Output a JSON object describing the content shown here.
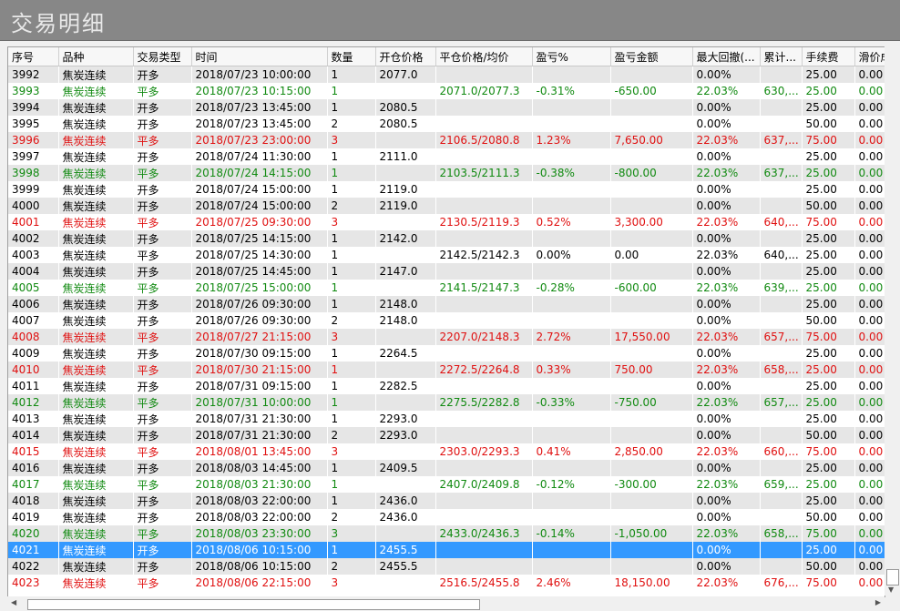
{
  "window": {
    "title": "交易明细"
  },
  "table": {
    "columns": [
      "序号",
      "品种",
      "交易类型",
      "时间",
      "数量",
      "开仓价格",
      "平仓价格/均价",
      "盈亏%",
      "盈亏金额",
      "最大回撤(...",
      "累计...",
      "手续费",
      "滑价成"
    ],
    "rows": [
      {
        "c": "black",
        "cells": [
          "3992",
          "焦炭连续",
          "开多",
          "2018/07/23 10:00:00",
          "1",
          "2077.0",
          "",
          "",
          "",
          "0.00%",
          "",
          "25.00",
          "0.00"
        ]
      },
      {
        "c": "green",
        "cells": [
          "3993",
          "焦炭连续",
          "平多",
          "2018/07/23 10:15:00",
          "1",
          "",
          "2071.0/2077.3",
          "-0.31%",
          "-650.00",
          "22.03%",
          "630,...",
          "25.00",
          "0.00"
        ]
      },
      {
        "c": "black",
        "cells": [
          "3994",
          "焦炭连续",
          "开多",
          "2018/07/23 13:45:00",
          "1",
          "2080.5",
          "",
          "",
          "",
          "0.00%",
          "",
          "25.00",
          "0.00"
        ]
      },
      {
        "c": "black",
        "cells": [
          "3995",
          "焦炭连续",
          "开多",
          "2018/07/23 13:45:00",
          "2",
          "2080.5",
          "",
          "",
          "",
          "0.00%",
          "",
          "50.00",
          "0.00"
        ]
      },
      {
        "c": "red",
        "cells": [
          "3996",
          "焦炭连续",
          "平多",
          "2018/07/23 23:00:00",
          "3",
          "",
          "2106.5/2080.8",
          "1.23%",
          "7,650.00",
          "22.03%",
          "637,...",
          "75.00",
          "0.00"
        ]
      },
      {
        "c": "black",
        "cells": [
          "3997",
          "焦炭连续",
          "开多",
          "2018/07/24 11:30:00",
          "1",
          "2111.0",
          "",
          "",
          "",
          "0.00%",
          "",
          "25.00",
          "0.00"
        ]
      },
      {
        "c": "green",
        "cells": [
          "3998",
          "焦炭连续",
          "平多",
          "2018/07/24 14:15:00",
          "1",
          "",
          "2103.5/2111.3",
          "-0.38%",
          "-800.00",
          "22.03%",
          "637,...",
          "25.00",
          "0.00"
        ]
      },
      {
        "c": "black",
        "cells": [
          "3999",
          "焦炭连续",
          "开多",
          "2018/07/24 15:00:00",
          "1",
          "2119.0",
          "",
          "",
          "",
          "0.00%",
          "",
          "25.00",
          "0.00"
        ]
      },
      {
        "c": "black",
        "cells": [
          "4000",
          "焦炭连续",
          "开多",
          "2018/07/24 15:00:00",
          "2",
          "2119.0",
          "",
          "",
          "",
          "0.00%",
          "",
          "50.00",
          "0.00"
        ]
      },
      {
        "c": "red",
        "cells": [
          "4001",
          "焦炭连续",
          "平多",
          "2018/07/25 09:30:00",
          "3",
          "",
          "2130.5/2119.3",
          "0.52%",
          "3,300.00",
          "22.03%",
          "640,...",
          "75.00",
          "0.00"
        ]
      },
      {
        "c": "black",
        "cells": [
          "4002",
          "焦炭连续",
          "开多",
          "2018/07/25 14:15:00",
          "1",
          "2142.0",
          "",
          "",
          "",
          "0.00%",
          "",
          "25.00",
          "0.00"
        ]
      },
      {
        "c": "black",
        "cells": [
          "4003",
          "焦炭连续",
          "平多",
          "2018/07/25 14:30:00",
          "1",
          "",
          "2142.5/2142.3",
          "0.00%",
          "0.00",
          "22.03%",
          "640,...",
          "25.00",
          "0.00"
        ]
      },
      {
        "c": "black",
        "cells": [
          "4004",
          "焦炭连续",
          "开多",
          "2018/07/25 14:45:00",
          "1",
          "2147.0",
          "",
          "",
          "",
          "0.00%",
          "",
          "25.00",
          "0.00"
        ]
      },
      {
        "c": "green",
        "cells": [
          "4005",
          "焦炭连续",
          "平多",
          "2018/07/25 15:00:00",
          "1",
          "",
          "2141.5/2147.3",
          "-0.28%",
          "-600.00",
          "22.03%",
          "639,...",
          "25.00",
          "0.00"
        ]
      },
      {
        "c": "black",
        "cells": [
          "4006",
          "焦炭连续",
          "开多",
          "2018/07/26 09:30:00",
          "1",
          "2148.0",
          "",
          "",
          "",
          "0.00%",
          "",
          "25.00",
          "0.00"
        ]
      },
      {
        "c": "black",
        "cells": [
          "4007",
          "焦炭连续",
          "开多",
          "2018/07/26 09:30:00",
          "2",
          "2148.0",
          "",
          "",
          "",
          "0.00%",
          "",
          "50.00",
          "0.00"
        ]
      },
      {
        "c": "red",
        "cells": [
          "4008",
          "焦炭连续",
          "平多",
          "2018/07/27 21:15:00",
          "3",
          "",
          "2207.0/2148.3",
          "2.72%",
          "17,550.00",
          "22.03%",
          "657,...",
          "75.00",
          "0.00"
        ]
      },
      {
        "c": "black",
        "cells": [
          "4009",
          "焦炭连续",
          "开多",
          "2018/07/30 09:15:00",
          "1",
          "2264.5",
          "",
          "",
          "",
          "0.00%",
          "",
          "25.00",
          "0.00"
        ]
      },
      {
        "c": "red",
        "cells": [
          "4010",
          "焦炭连续",
          "平多",
          "2018/07/30 21:15:00",
          "1",
          "",
          "2272.5/2264.8",
          "0.33%",
          "750.00",
          "22.03%",
          "658,...",
          "25.00",
          "0.00"
        ]
      },
      {
        "c": "black",
        "cells": [
          "4011",
          "焦炭连续",
          "开多",
          "2018/07/31 09:15:00",
          "1",
          "2282.5",
          "",
          "",
          "",
          "0.00%",
          "",
          "25.00",
          "0.00"
        ]
      },
      {
        "c": "green",
        "cells": [
          "4012",
          "焦炭连续",
          "平多",
          "2018/07/31 10:00:00",
          "1",
          "",
          "2275.5/2282.8",
          "-0.33%",
          "-750.00",
          "22.03%",
          "657,...",
          "25.00",
          "0.00"
        ]
      },
      {
        "c": "black",
        "cells": [
          "4013",
          "焦炭连续",
          "开多",
          "2018/07/31 21:30:00",
          "1",
          "2293.0",
          "",
          "",
          "",
          "0.00%",
          "",
          "25.00",
          "0.00"
        ]
      },
      {
        "c": "black",
        "cells": [
          "4014",
          "焦炭连续",
          "开多",
          "2018/07/31 21:30:00",
          "2",
          "2293.0",
          "",
          "",
          "",
          "0.00%",
          "",
          "50.00",
          "0.00"
        ]
      },
      {
        "c": "red",
        "cells": [
          "4015",
          "焦炭连续",
          "平多",
          "2018/08/01 13:45:00",
          "3",
          "",
          "2303.0/2293.3",
          "0.41%",
          "2,850.00",
          "22.03%",
          "660,...",
          "75.00",
          "0.00"
        ]
      },
      {
        "c": "black",
        "cells": [
          "4016",
          "焦炭连续",
          "开多",
          "2018/08/03 14:45:00",
          "1",
          "2409.5",
          "",
          "",
          "",
          "0.00%",
          "",
          "25.00",
          "0.00"
        ]
      },
      {
        "c": "green",
        "cells": [
          "4017",
          "焦炭连续",
          "平多",
          "2018/08/03 21:30:00",
          "1",
          "",
          "2407.0/2409.8",
          "-0.12%",
          "-300.00",
          "22.03%",
          "659,...",
          "25.00",
          "0.00"
        ]
      },
      {
        "c": "black",
        "cells": [
          "4018",
          "焦炭连续",
          "开多",
          "2018/08/03 22:00:00",
          "1",
          "2436.0",
          "",
          "",
          "",
          "0.00%",
          "",
          "25.00",
          "0.00"
        ]
      },
      {
        "c": "black",
        "cells": [
          "4019",
          "焦炭连续",
          "开多",
          "2018/08/03 22:00:00",
          "2",
          "2436.0",
          "",
          "",
          "",
          "0.00%",
          "",
          "50.00",
          "0.00"
        ]
      },
      {
        "c": "green",
        "cells": [
          "4020",
          "焦炭连续",
          "平多",
          "2018/08/03 23:30:00",
          "3",
          "",
          "2433.0/2436.3",
          "-0.14%",
          "-1,050.00",
          "22.03%",
          "658,...",
          "75.00",
          "0.00"
        ]
      },
      {
        "c": "black",
        "sel": true,
        "cells": [
          "4021",
          "焦炭连续",
          "开多",
          "2018/08/06 10:15:00",
          "1",
          "2455.5",
          "",
          "",
          "",
          "0.00%",
          "",
          "25.00",
          "0.00"
        ]
      },
      {
        "c": "black",
        "cells": [
          "4022",
          "焦炭连续",
          "开多",
          "2018/08/06 10:15:00",
          "2",
          "2455.5",
          "",
          "",
          "",
          "0.00%",
          "",
          "50.00",
          "0.00"
        ]
      },
      {
        "c": "red",
        "cells": [
          "4023",
          "焦炭连续",
          "平多",
          "2018/08/06 22:15:00",
          "3",
          "",
          "2516.5/2455.8",
          "2.46%",
          "18,150.00",
          "22.03%",
          "676,...",
          "75.00",
          "0.00"
        ]
      }
    ]
  },
  "scrollbars": {
    "up_arrow": "▲",
    "down_arrow": "▼",
    "left_arrow": "◀",
    "right_arrow": "▶"
  }
}
